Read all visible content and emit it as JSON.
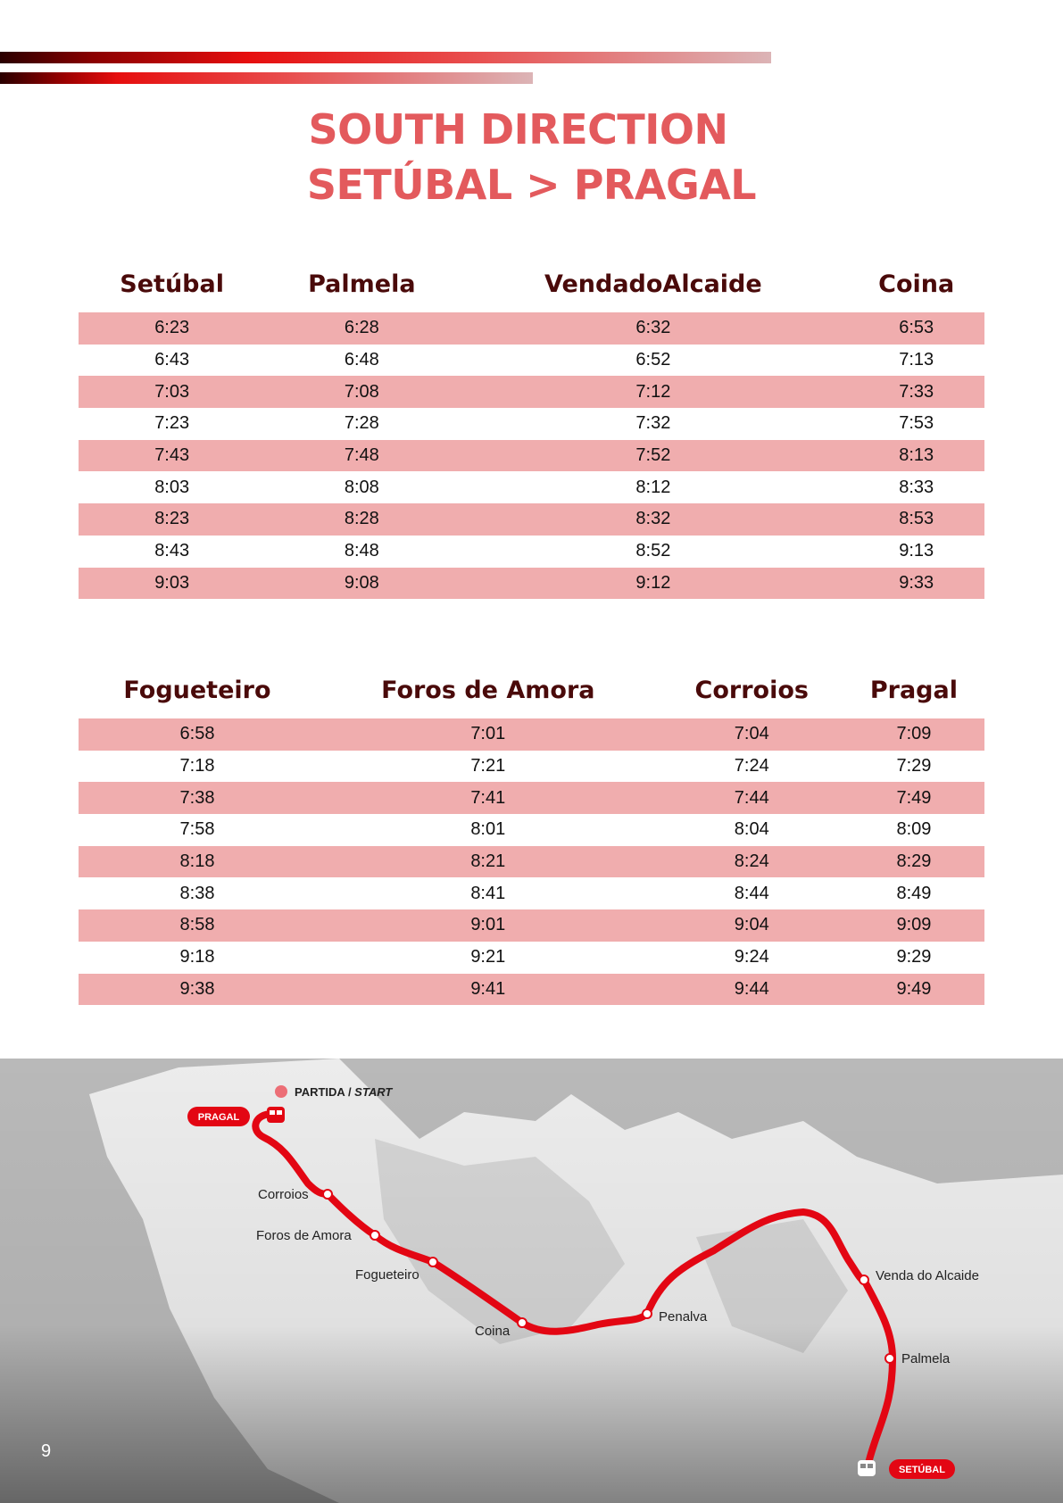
{
  "header": {
    "title_line1": "SOUTH DIRECTION",
    "title_line2": "SETÚBAL > PRAGAL"
  },
  "table1": {
    "columns": [
      "Setúbal",
      "Palmela",
      "VendadoAlcaide",
      "Coina"
    ],
    "rows": [
      [
        "6:23",
        "6:28",
        "6:32",
        "6:53"
      ],
      [
        "6:43",
        "6:48",
        "6:52",
        "7:13"
      ],
      [
        "7:03",
        "7:08",
        "7:12",
        "7:33"
      ],
      [
        "7:23",
        "7:28",
        "7:32",
        "7:53"
      ],
      [
        "7:43",
        "7:48",
        "7:52",
        "8:13"
      ],
      [
        "8:03",
        "8:08",
        "8:12",
        "8:33"
      ],
      [
        "8:23",
        "8:28",
        "8:32",
        "8:53"
      ],
      [
        "8:43",
        "8:48",
        "8:52",
        "9:13"
      ],
      [
        "9:03",
        "9:08",
        "9:12",
        "9:33"
      ]
    ]
  },
  "table2": {
    "columns": [
      "Fogueteiro",
      "Foros de Amora",
      "Corroios",
      "Pragal"
    ],
    "rows": [
      [
        "6:58",
        "7:01",
        "7:04",
        "7:09"
      ],
      [
        "7:18",
        "7:21",
        "7:24",
        "7:29"
      ],
      [
        "7:38",
        "7:41",
        "7:44",
        "7:49"
      ],
      [
        "7:58",
        "8:01",
        "8:04",
        "8:09"
      ],
      [
        "8:18",
        "8:21",
        "8:24",
        "8:29"
      ],
      [
        "8:38",
        "8:41",
        "8:44",
        "8:49"
      ],
      [
        "8:58",
        "9:01",
        "9:04",
        "9:09"
      ],
      [
        "9:18",
        "9:21",
        "9:24",
        "9:29"
      ],
      [
        "9:38",
        "9:41",
        "9:44",
        "9:49"
      ]
    ]
  },
  "map": {
    "legend_start": "PARTIDA / ",
    "legend_start_en": "START",
    "origin_pill": "PRAGAL",
    "destination_pill": "SETÚBAL",
    "stations": [
      "Corroios",
      "Foros de Amora",
      "Fogueteiro",
      "Coina",
      "Penalva",
      "Venda do Alcaide",
      "Palmela"
    ],
    "route_color": "#e30613"
  },
  "page_number": "9"
}
